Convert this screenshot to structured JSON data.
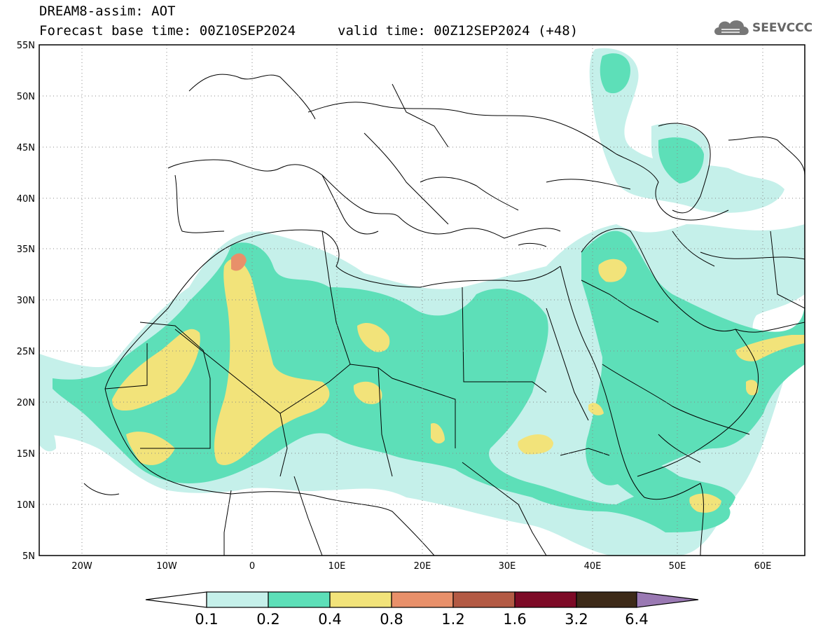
{
  "header": {
    "title": "DREAM8-assim: AOT",
    "base_time": "Forecast base time: 00Z10SEP2024",
    "valid_time": "valid time: 00Z12SEP2024 (+48)",
    "logo_text": "SEEVCCC"
  },
  "map": {
    "lon_range": [
      -25,
      65
    ],
    "lat_range": [
      5,
      55
    ],
    "lat_ticks": [
      "55N",
      "50N",
      "45N",
      "40N",
      "35N",
      "30N",
      "25N",
      "20N",
      "15N",
      "10N",
      "5N"
    ],
    "lon_ticks": [
      "20W",
      "10W",
      "0",
      "10E",
      "20E",
      "30E",
      "40E",
      "50E",
      "60E"
    ],
    "gridlines": "dotted"
  },
  "colorbar": {
    "levels": [
      "0.1",
      "0.2",
      "0.4",
      "0.8",
      "1.2",
      "1.6",
      "3.2",
      "6.4"
    ],
    "colors": [
      "#c5f0ea",
      "#5ddfb8",
      "#f2e37a",
      "#e8906a",
      "#b35a44",
      "#7d0a26",
      "#3d2a18",
      "#9a79b3"
    ],
    "under_color": "#ffffff",
    "over_color": "#9a79b3"
  },
  "legend_colors": {
    "land_border": "#000000",
    "background": "#ffffff"
  }
}
